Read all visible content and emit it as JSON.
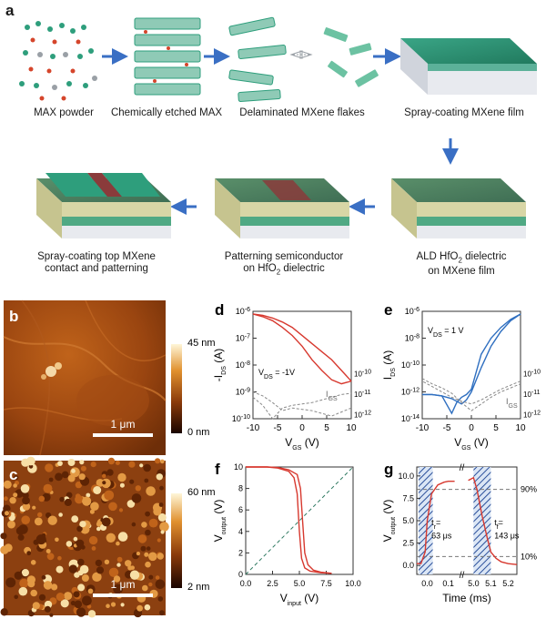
{
  "panel_a": {
    "letter": "a",
    "steps": [
      {
        "label": "MAX powder"
      },
      {
        "label": "Chemically etched MAX"
      },
      {
        "label": "Delaminated MXene flakes"
      },
      {
        "label": "Spray-coating MXene film"
      },
      {
        "label": "ALD HfO",
        "sub": "2",
        "label_tail": " dielectric",
        "line2": "on MXene film"
      },
      {
        "label": "Patterning semiconductor",
        "line2": "on HfO",
        "sub": "2",
        "line2_tail": " dielectric"
      },
      {
        "label": "Spray-coating top MXene",
        "line2": "contact and patterning"
      }
    ],
    "colors": {
      "mxene": "#2e9e7c",
      "arrow": "#3a6fc4",
      "substrate": "#cfd3dc",
      "semiconductor": "#8a3b3b",
      "dielectric": "#d8d6a6"
    }
  },
  "panel_b": {
    "letter": "b",
    "scale_max": "45 nm",
    "scale_min": "0 nm",
    "scale_bar": "1 μm"
  },
  "panel_c": {
    "letter": "c",
    "scale_max": "60 nm",
    "scale_min": "2 nm",
    "scale_bar": "1 μm"
  },
  "chart_data": [
    {
      "panel": "d",
      "type": "line",
      "ylabel_main": "-I",
      "ylabel_sub": "DS",
      "ylabel_unit": " (A)",
      "xlabel_main": "V",
      "xlabel_sub": "GS",
      "xlabel_unit": " (V)",
      "xlim": [
        -10,
        10
      ],
      "x_ticks": [
        "-10",
        "-5",
        "0",
        "5",
        "10"
      ],
      "y_ticks_left": [
        "10",
        "10",
        "10",
        "10",
        "10"
      ],
      "y_ticks_left_exp": [
        "-6",
        "-7",
        "-8",
        "-9",
        "-10"
      ],
      "y_ticks_right_exp": [
        "-10",
        "-11",
        "-12"
      ],
      "annotation_vds": "V",
      "annotation_vds_sub": "DS",
      "annotation_vds_value": " = -1V",
      "annotation_igs": "I",
      "annotation_igs_sub": "GS",
      "series": [
        {
          "x": [
            -10,
            -8,
            -6,
            -4,
            -2,
            0,
            2,
            4,
            6,
            8,
            10
          ],
          "y": [
            -6.1,
            -6.15,
            -6.25,
            -6.4,
            -6.6,
            -6.9,
            -7.2,
            -7.5,
            -7.8,
            -8.2,
            -8.6
          ]
        },
        {
          "x": [
            10,
            8,
            6,
            4,
            2,
            0,
            -2,
            -4,
            -6,
            -8,
            -10
          ],
          "y": [
            -8.6,
            -8.7,
            -8.55,
            -8.2,
            -7.8,
            -7.3,
            -6.9,
            -6.6,
            -6.35,
            -6.2,
            -6.1
          ]
        }
      ],
      "leakage": [
        {
          "x": [
            -10,
            -8,
            -6,
            -4,
            -2,
            0,
            2,
            4,
            6,
            8,
            10
          ],
          "y": [
            -9.2,
            -9.5,
            -10,
            -9.6,
            -9.5,
            -9.45,
            -9.4,
            -9.3,
            -9.2,
            -9.1,
            -9.05
          ]
        },
        {
          "x": [
            10,
            8,
            6,
            4,
            2,
            0,
            -2,
            -4,
            -6,
            -8,
            -10
          ],
          "y": [
            -9.6,
            -9.75,
            -9.9,
            -9.8,
            -9.7,
            -9.65,
            -9.6,
            -9.7,
            -9.4,
            -9.15,
            -9.0
          ]
        }
      ]
    },
    {
      "panel": "e",
      "type": "line",
      "ylabel_main": "I",
      "ylabel_sub": "DS",
      "ylabel_unit": " (A)",
      "xlabel_main": "V",
      "xlabel_sub": "GS",
      "xlabel_unit": " (V)",
      "xlim": [
        -10,
        10
      ],
      "x_ticks": [
        "-10",
        "-5",
        "0",
        "5",
        "10"
      ],
      "y_ticks_left": [
        "10",
        "10",
        "10",
        "10",
        "10"
      ],
      "y_ticks_left_exp": [
        "-6",
        "-8",
        "-10",
        "-12",
        "-14"
      ],
      "y_ticks_right_exp": [
        "-10",
        "-11",
        "-12"
      ],
      "annotation_vds": "V",
      "annotation_vds_sub": "DS",
      "annotation_vds_value": " = 1 V",
      "annotation_igs": "I",
      "annotation_igs_sub": "GS",
      "series": [
        {
          "x": [
            -10,
            -8,
            -6,
            -4,
            -3,
            -2,
            -1,
            0,
            2,
            4,
            6,
            8,
            10
          ],
          "y": [
            -12.2,
            -12.2,
            -12.3,
            -13.6,
            -12.8,
            -12.4,
            -12.2,
            -11.8,
            -9.2,
            -8.0,
            -7.2,
            -6.6,
            -6.2
          ]
        },
        {
          "x": [
            10,
            8,
            6,
            4,
            2,
            0,
            -1,
            -2,
            -3,
            -4,
            -6,
            -8,
            -10
          ],
          "y": [
            -6.2,
            -6.7,
            -7.5,
            -8.6,
            -10.2,
            -12.0,
            -12.6,
            -12.9,
            -12.7,
            -12.5,
            -12.3,
            -12.2,
            -12.2
          ]
        }
      ],
      "leakage": [
        {
          "x": [
            -10,
            -8,
            -6,
            -4,
            -2,
            0,
            2,
            4,
            6,
            8,
            10
          ],
          "y": [
            -11.0,
            -11.4,
            -11.7,
            -12.1,
            -12.8,
            -13.4,
            -12.9,
            -12.4,
            -12.0,
            -11.7,
            -11.4
          ]
        },
        {
          "x": [
            10,
            8,
            6,
            4,
            2,
            0,
            -2,
            -4,
            -6,
            -8,
            -10
          ],
          "y": [
            -11.2,
            -11.5,
            -11.8,
            -12.2,
            -12.6,
            -12.9,
            -12.7,
            -12.4,
            -12.0,
            -11.6,
            -11.2
          ]
        }
      ]
    },
    {
      "panel": "f",
      "type": "line",
      "ylabel_main": "V",
      "ylabel_sub": "output",
      "ylabel_unit": " (V)",
      "xlabel_main": "V",
      "xlabel_sub": "input",
      "xlabel_unit": " (V)",
      "xlim": [
        0,
        10
      ],
      "ylim": [
        0,
        10
      ],
      "x_ticks": [
        "0.0",
        "2.5",
        "5.0",
        "7.5",
        "10.0"
      ],
      "y_ticks": [
        "0",
        "2",
        "4",
        "6",
        "8",
        "10"
      ],
      "series": [
        {
          "x": [
            0,
            2,
            3,
            4,
            4.5,
            4.8,
            5.0,
            5.2,
            5.5,
            6,
            7,
            8
          ],
          "y": [
            10,
            10,
            9.9,
            9.6,
            9.0,
            7.5,
            4.0,
            1.5,
            0.6,
            0.3,
            0.15,
            0.1
          ]
        },
        {
          "x": [
            0,
            2,
            3,
            4,
            4.8,
            5.1,
            5.3,
            5.5,
            5.8,
            6.3,
            7,
            8
          ],
          "y": [
            10,
            10,
            9.95,
            9.75,
            9.3,
            8.0,
            5.0,
            2.0,
            0.9,
            0.4,
            0.2,
            0.1
          ]
        }
      ],
      "reference_line": {
        "x": [
          0,
          10
        ],
        "y": [
          0,
          10
        ]
      }
    },
    {
      "panel": "g",
      "type": "line",
      "ylabel_main": "V",
      "ylabel_sub": "output",
      "ylabel_unit": " (V)",
      "xlabel": "Time (ms)",
      "x_ticks_left": [
        "0.0",
        "0.1"
      ],
      "x_ticks_right": [
        "5.0",
        "5.1",
        "5.2"
      ],
      "y_ticks": [
        "0.0",
        "2.5",
        "5.0",
        "7.5",
        "10.0"
      ],
      "right_labels": [
        "90%",
        "10%"
      ],
      "rise_label": "t",
      "rise_sub": "r",
      "rise_value": "=",
      "rise_value2": "63 μs",
      "fall_label": "t",
      "fall_sub": "f",
      "fall_value": "=",
      "fall_value2": "143 μs",
      "break_mark": "//",
      "levels": {
        "high": 8.5,
        "low": 1.0
      },
      "series": [
        {
          "segment": "left",
          "x": [
            -0.05,
            -0.03,
            -0.01,
            0.0,
            0.02,
            0.05,
            0.08,
            0.1,
            0.13
          ],
          "y": [
            0.2,
            0.2,
            1.5,
            5.0,
            8.0,
            9.0,
            9.3,
            9.4,
            9.4
          ]
        },
        {
          "segment": "right",
          "x": [
            4.97,
            5.0,
            5.02,
            5.05,
            5.08,
            5.1,
            5.13,
            5.16,
            5.2,
            5.25
          ],
          "y": [
            9.5,
            9.8,
            8.5,
            5.5,
            3.0,
            1.5,
            0.8,
            0.4,
            0.2,
            0.1
          ]
        }
      ]
    }
  ]
}
